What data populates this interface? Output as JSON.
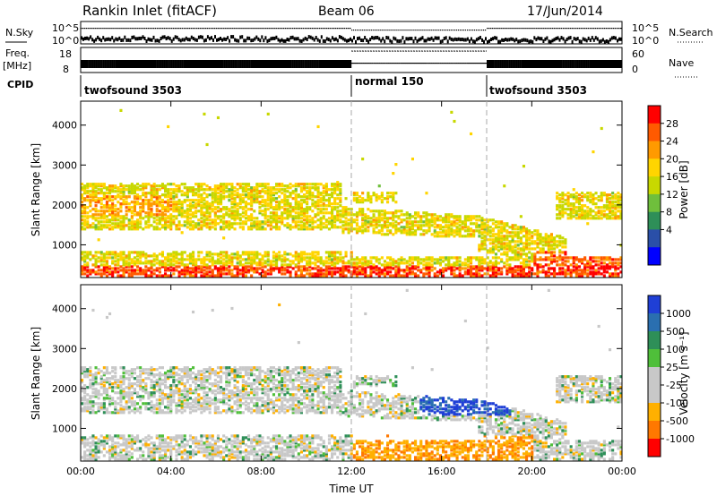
{
  "header": {
    "station": "Rankin Inlet (fitACF)",
    "beam": "Beam 06",
    "date": "17/Jun/2014"
  },
  "panels": {
    "nsky": {
      "left_label": "N.Sky",
      "right_label": "N.Search",
      "left_ticks": [
        "10^5",
        "10^0"
      ],
      "right_ticks": [
        "10^5",
        "10^0"
      ]
    },
    "freq": {
      "left_label_line1": "Freq.",
      "left_label_line2": "[MHz]",
      "right_label": "Nave",
      "left_ticks": [
        "18",
        "8"
      ],
      "right_ticks": [
        "60",
        "0"
      ]
    },
    "cpid": {
      "label": "CPID",
      "segments": [
        {
          "name": "twofsound 3503",
          "start_h": 0,
          "end_h": 12
        },
        {
          "name": "normal 150",
          "start_h": 12,
          "end_h": 18
        },
        {
          "name": "twofsound 3503",
          "start_h": 18,
          "end_h": 24
        }
      ]
    }
  },
  "colorbars": {
    "power": {
      "label": "Power [dB]",
      "ticks": [
        "28",
        "24",
        "20",
        "16",
        "12",
        "8",
        "4"
      ],
      "colors": [
        "#ff0000",
        "#ff5a00",
        "#ff9a00",
        "#ffd500",
        "#c8d800",
        "#6fbf3c",
        "#2e8f58",
        "#2a4fa8",
        "#0000ff"
      ]
    },
    "velocity": {
      "label": "Velocity [m s⁻¹]",
      "ticks": [
        "1000",
        "500",
        "100",
        "25",
        "-25",
        "-100",
        "-500",
        "-1000"
      ],
      "colors": [
        "#1f3fd6",
        "#2a6fb0",
        "#2e8f58",
        "#4fbf3a",
        "#c8c8c8",
        "#c8c8c8",
        "#ffb000",
        "#ff7800",
        "#ff0000"
      ]
    }
  },
  "chart_data": [
    {
      "type": "heatmap",
      "title": "",
      "xlabel": "Time UT",
      "ylabel": "Slant Range [km]",
      "xlim": [
        0,
        24
      ],
      "ylim": [
        180,
        4600
      ],
      "x_ticks": [
        "00:00",
        "04:00",
        "08:00",
        "12:00",
        "16:00",
        "20:00",
        "00:00"
      ],
      "y_ticks": [
        "1000",
        "2000",
        "3000",
        "4000"
      ],
      "colorbar": "Power [dB]",
      "crange": [
        0,
        32
      ]
    },
    {
      "type": "heatmap",
      "title": "",
      "xlabel": "Time UT",
      "ylabel": "Slant Range [km]",
      "xlim": [
        0,
        24
      ],
      "ylim": [
        180,
        4600
      ],
      "x_ticks": [
        "00:00",
        "04:00",
        "08:00",
        "12:00",
        "16:00",
        "20:00",
        "00:00"
      ],
      "y_ticks": [
        "1000",
        "2000",
        "3000",
        "4000"
      ],
      "colorbar": "Velocity [m s⁻¹]",
      "crange": [
        -1000,
        1000
      ]
    }
  ]
}
